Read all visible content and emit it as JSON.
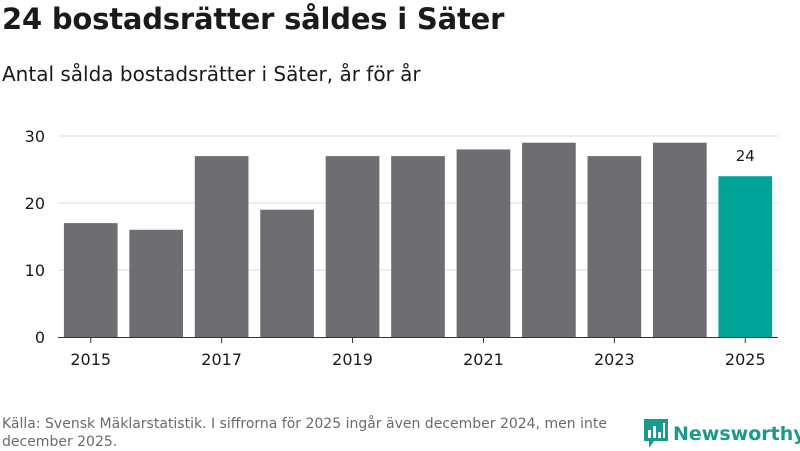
{
  "title": "24 bostadsrätter såldes i Säter",
  "subtitle": "Antal sålda bostadsrätter i Säter, år för år",
  "source": "Källa: Svensk Mäklarstatistik. I siffrorna för 2025 ingår även december 2024, men inte december 2025.",
  "brand": {
    "name": "Newsworthy",
    "color": "#1b9a8c",
    "icon": "newsworthy-chart-icon"
  },
  "colors": {
    "bar": "#6e6d72",
    "highlight": "#00a398",
    "grid": "#dcdcdc",
    "axis": "#333333"
  },
  "chart_data": {
    "type": "bar",
    "categories": [
      "2015",
      "2016",
      "2017",
      "2018",
      "2019",
      "2020",
      "2021",
      "2022",
      "2023",
      "2024",
      "2025"
    ],
    "values": [
      17,
      16,
      27,
      19,
      27,
      27,
      28,
      29,
      27,
      29,
      24
    ],
    "highlight_index": 10,
    "highlight_label": "24",
    "x_tick_labels": [
      "2015",
      "2017",
      "2019",
      "2021",
      "2023",
      "2025"
    ],
    "y_ticks": [
      0,
      10,
      20,
      30
    ],
    "ylim": [
      0,
      30
    ],
    "grid": true,
    "legend": false
  }
}
